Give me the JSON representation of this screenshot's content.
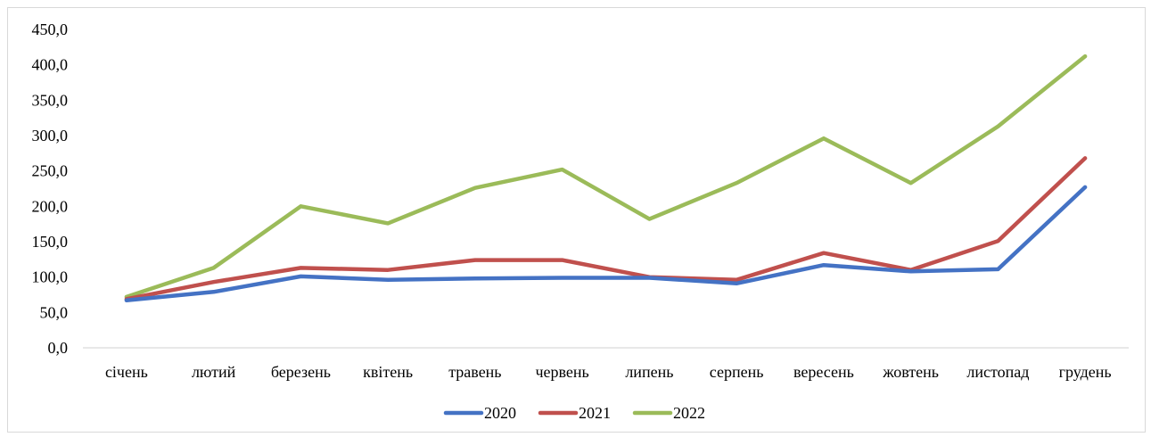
{
  "chart_data": {
    "type": "line",
    "title": "",
    "xlabel": "",
    "ylabel": "",
    "categories": [
      "січень",
      "лютий",
      "березень",
      "квітень",
      "травень",
      "червень",
      "липень",
      "серпень",
      "вересень",
      "жовтень",
      "листопад",
      "грудень"
    ],
    "ylim": [
      0,
      450
    ],
    "yticks": [
      "0,0",
      "50,0",
      "100,0",
      "150,0",
      "200,0",
      "250,0",
      "300,0",
      "350,0",
      "400,0",
      "450,0"
    ],
    "grid": false,
    "legend": "bottom",
    "series": [
      {
        "name": "2020",
        "color": "#4472c4",
        "values": [
          67,
          79,
          101,
          96,
          98,
          99,
          99,
          91,
          117,
          108,
          111,
          227
        ]
      },
      {
        "name": "2021",
        "color": "#c0504d",
        "values": [
          69,
          93,
          113,
          110,
          124,
          124,
          100,
          96,
          134,
          110,
          151,
          268
        ]
      },
      {
        "name": "2022",
        "color": "#9bbb59",
        "values": [
          72,
          113,
          200,
          176,
          226,
          252,
          182,
          233,
          296,
          233,
          313,
          412
        ]
      }
    ]
  }
}
